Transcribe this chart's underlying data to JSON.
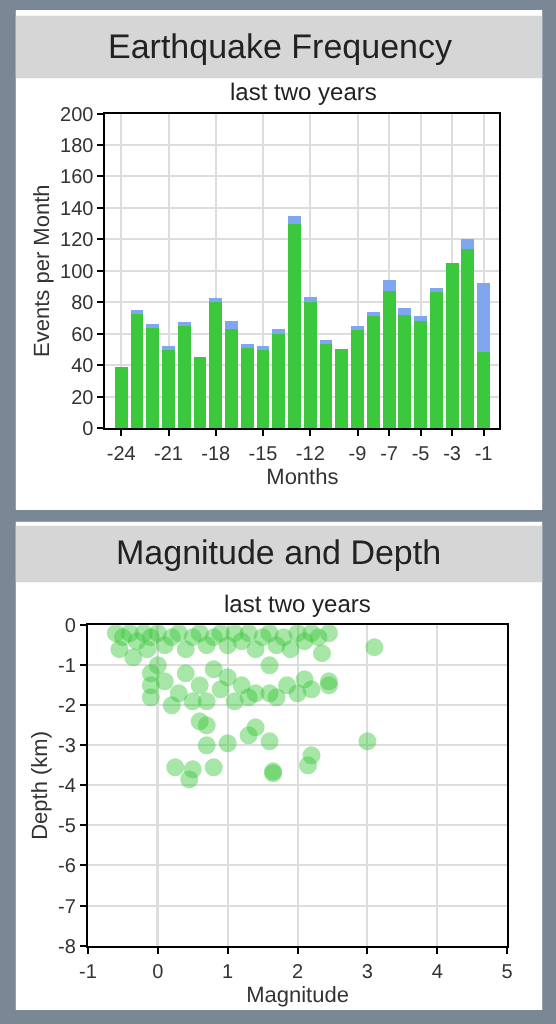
{
  "chart_data": [
    {
      "type": "bar",
      "title": "Earthquake Frequency",
      "subtitle": "last two years",
      "xlabel": "Months",
      "ylabel": "Events per Month",
      "x": [
        -24,
        -23,
        -22,
        -21,
        -20,
        -19,
        -18,
        -17,
        -16,
        -15,
        -14,
        -13,
        -12,
        -11,
        -10,
        -9,
        -8,
        -7,
        -6,
        -5,
        -4,
        -3,
        -2,
        -1
      ],
      "stacked": true,
      "series": [
        {
          "color": "#3cc83c",
          "values": [
            39,
            73,
            65,
            51,
            66,
            45,
            81,
            63,
            52,
            51,
            60,
            130,
            81,
            54,
            50,
            62,
            72,
            87,
            72,
            68,
            87,
            105,
            114,
            48
          ]
        },
        {
          "color": "#7fa6ee",
          "values": [
            0,
            2,
            1,
            1,
            1,
            0,
            1,
            5,
            1,
            1,
            3,
            5,
            2,
            1,
            0,
            3,
            1,
            7,
            4,
            3,
            2,
            0,
            6,
            44
          ]
        }
      ],
      "xlim": [
        -25,
        0
      ],
      "xticks": [
        -24,
        -21,
        -18,
        -15,
        -12,
        -9,
        -7,
        -5,
        -3,
        -1
      ],
      "ylim": [
        0,
        200
      ],
      "yticks": [
        0,
        20,
        40,
        60,
        80,
        100,
        120,
        140,
        160,
        180,
        200
      ],
      "grid": true
    },
    {
      "type": "scatter",
      "title": "Magnitude and Depth",
      "subtitle": "last two years",
      "xlabel": "Magnitude",
      "ylabel": "Depth (km)",
      "marker": "circle",
      "series": [
        {
          "color": "#3cc83c",
          "x": [
            -0.6,
            -0.55,
            -0.5,
            -0.4,
            -0.35,
            -0.3,
            -0.2,
            -0.15,
            -0.1,
            0,
            0.1,
            0.2,
            0.3,
            0.4,
            0.5,
            0.6,
            0.7,
            0.8,
            0.9,
            1.0,
            1.1,
            1.2,
            1.3,
            1.4,
            1.5,
            1.6,
            1.7,
            1.8,
            1.9,
            2.0,
            2.1,
            2.2,
            2.3,
            2.35,
            2.45,
            3.1,
            -0.1,
            -0.1,
            -0.1,
            0.0,
            0.1,
            0.2,
            0.3,
            0.4,
            0.5,
            0.6,
            0.7,
            0.8,
            0.9,
            1.0,
            1.1,
            1.2,
            1.3,
            1.4,
            1.6,
            1.6,
            1.7,
            1.85,
            2.0,
            2.1,
            2.2,
            2.45,
            2.45,
            0.6,
            0.7,
            0.7,
            1.0,
            1.3,
            1.4,
            1.6,
            3.0,
            0.25,
            0.5,
            0.8,
            0.45,
            1.65,
            1.65,
            2.15,
            2.2
          ],
          "values": [
            -0.2,
            -0.6,
            -0.3,
            -0.2,
            -0.8,
            -0.4,
            -0.2,
            -0.6,
            -0.3,
            -0.2,
            -0.5,
            -0.3,
            -0.2,
            -0.6,
            -0.3,
            -0.2,
            -0.5,
            -0.3,
            -0.2,
            -0.5,
            -0.2,
            -0.4,
            -0.2,
            -0.6,
            -0.3,
            -0.2,
            -0.5,
            -0.3,
            -0.6,
            -0.2,
            -0.4,
            -0.2,
            -0.3,
            -0.7,
            -0.2,
            -0.55,
            -1.2,
            -1.5,
            -1.8,
            -1.0,
            -1.4,
            -2.0,
            -1.7,
            -1.2,
            -1.9,
            -1.5,
            -1.9,
            -1.1,
            -1.6,
            -1.3,
            -1.9,
            -1.5,
            -1.8,
            -1.7,
            -1.0,
            -1.7,
            -1.8,
            -1.5,
            -1.7,
            -1.35,
            -1.6,
            -1.4,
            -1.5,
            -2.4,
            -2.5,
            -3.0,
            -2.95,
            -2.75,
            -2.55,
            -2.9,
            -2.9,
            -3.55,
            -3.6,
            -3.55,
            -3.85,
            -3.7,
            -3.65,
            -3.5,
            -3.25
          ]
        }
      ],
      "ref_lines": [
        {
          "axis": "x",
          "value": 0,
          "color": "#707070"
        }
      ],
      "xlim": [
        -1,
        5
      ],
      "xticks": [
        -1,
        0,
        1,
        2,
        3,
        4,
        5
      ],
      "ylim": [
        -8,
        0
      ],
      "yticks": [
        -8,
        -7,
        -6,
        -5,
        -4,
        -3,
        -2,
        -1,
        0
      ],
      "grid": true
    }
  ]
}
